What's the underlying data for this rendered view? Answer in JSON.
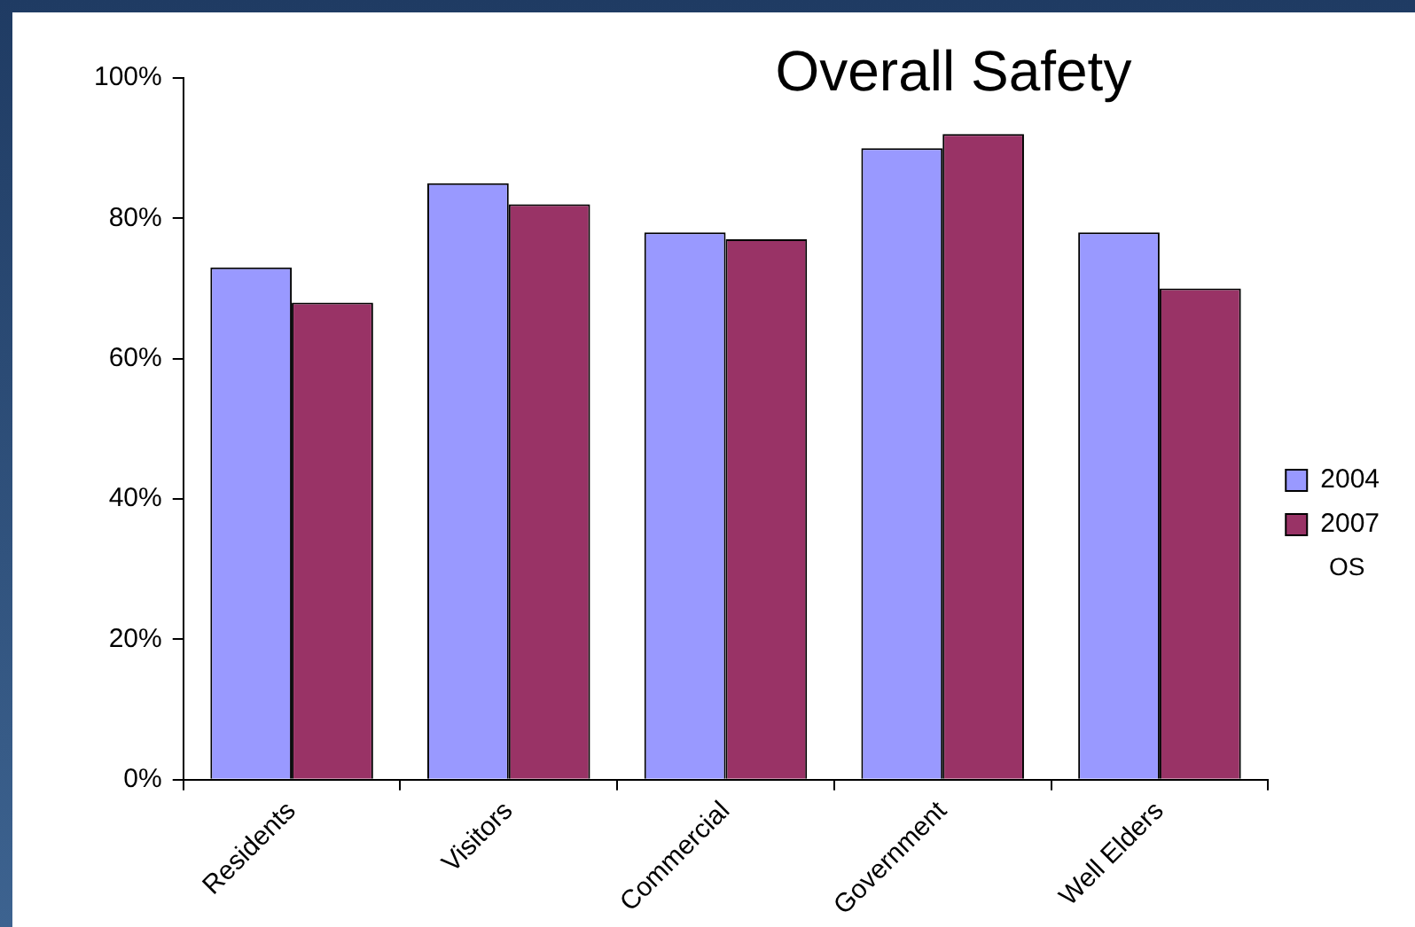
{
  "chart_data": {
    "type": "bar",
    "title": "Overall Safety",
    "categories": [
      "Residents",
      "Visitors",
      "Commercial",
      "Government",
      "Well Elders"
    ],
    "series": [
      {
        "name": "2004",
        "color": "#9999ff",
        "values": [
          73,
          85,
          78,
          90,
          78
        ]
      },
      {
        "name": "2007",
        "color": "#993366",
        "values": [
          68,
          82,
          77,
          92,
          70
        ]
      }
    ],
    "ylim": [
      0,
      100
    ],
    "yticks": [
      {
        "value": 0,
        "label": "0%"
      },
      {
        "value": 20,
        "label": "20%"
      },
      {
        "value": 40,
        "label": "40%"
      },
      {
        "value": 60,
        "label": "60%"
      },
      {
        "value": 80,
        "label": "80%"
      },
      {
        "value": 100,
        "label": "100%"
      }
    ],
    "grid": false,
    "legend": "right",
    "annotations": [
      "OS"
    ]
  }
}
